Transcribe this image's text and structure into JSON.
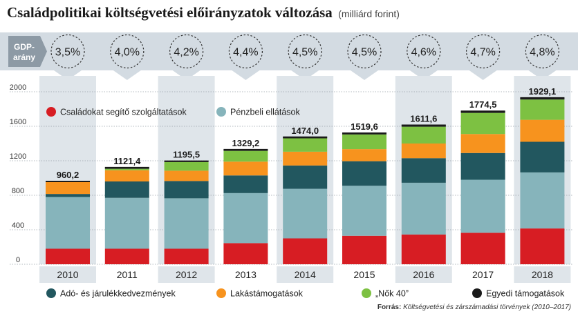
{
  "header": {
    "title": "Családpolitikai költségvetési előirányzatok változása",
    "unit": "(milliárd forint)"
  },
  "gdp": {
    "label_line1": "GDP-",
    "label_line2": "arány",
    "values": [
      "3,5%",
      "4,0%",
      "4,2%",
      "4,4%",
      "4,5%",
      "4,5%",
      "4,6%",
      "4,7%",
      "4,8%"
    ]
  },
  "source": {
    "label": "Forrás:",
    "text": "Költségvetési és zárszámadási törvények (2010–2017)"
  },
  "colors": {
    "band": "#dfe5ea",
    "gdp_strip": "#d3dbe2",
    "gdp_box": "#8d9aa5"
  },
  "chart_data": {
    "type": "bar",
    "stacked": true,
    "categories": [
      "2010",
      "2011",
      "2012",
      "2013",
      "2014",
      "2015",
      "2016",
      "2017",
      "2018"
    ],
    "ylim": [
      0,
      2000
    ],
    "yticks": [
      0,
      400,
      800,
      1200,
      1600,
      2000
    ],
    "totals": [
      960.2,
      1121.4,
      1195.5,
      1329.2,
      1474.0,
      1519.6,
      1611.6,
      1774.5,
      1929.1
    ],
    "total_labels": [
      "960,2",
      "1121,4",
      "1195,5",
      "1329,2",
      "1474,0",
      "1519,6",
      "1611,6",
      "1774,5",
      "1929,1"
    ],
    "series": [
      {
        "name": "Családokat segítő szolgáltatások",
        "color": "#d71d23",
        "values": [
          180,
          180,
          180,
          245,
          300,
          330,
          345,
          365,
          415
        ]
      },
      {
        "name": "Pénzbeli ellátások",
        "color": "#86b4bb",
        "values": [
          600,
          590,
          585,
          580,
          575,
          580,
          600,
          615,
          650
        ]
      },
      {
        "name": "Adó- és járulékkedvezmények",
        "color": "#22575f",
        "values": [
          35,
          190,
          200,
          205,
          270,
          285,
          285,
          310,
          355
        ]
      },
      {
        "name": "Lakástámogatások",
        "color": "#f7931e",
        "values": [
          140,
          130,
          120,
          160,
          160,
          140,
          170,
          220,
          255
        ]
      },
      {
        "name": "„Nők 40”",
        "color": "#7dc142",
        "values": [
          0,
          17,
          100,
          125,
          155,
          170,
          195,
          245,
          235
        ]
      },
      {
        "name": "Egyedi támogatások",
        "color": "#1a1a1a",
        "values": [
          5.2,
          14.4,
          10.5,
          14.2,
          14.0,
          14.6,
          16.6,
          19.5,
          19.1
        ]
      }
    ],
    "legend": [
      {
        "name": "Családokat segítő szolgáltatások",
        "color": "#d71d23",
        "placement": "inside-top"
      },
      {
        "name": "Pénzbeli ellátások",
        "color": "#86b4bb",
        "placement": "inside-top"
      },
      {
        "name": "Adó- és járulékkedvezmények",
        "color": "#22575f",
        "placement": "bottom"
      },
      {
        "name": "Lakástámogatások",
        "color": "#f7931e",
        "placement": "bottom"
      },
      {
        "name": "„Nők 40”",
        "color": "#7dc142",
        "placement": "bottom"
      },
      {
        "name": "Egyedi támogatások",
        "color": "#1a1a1a",
        "placement": "bottom"
      }
    ]
  }
}
